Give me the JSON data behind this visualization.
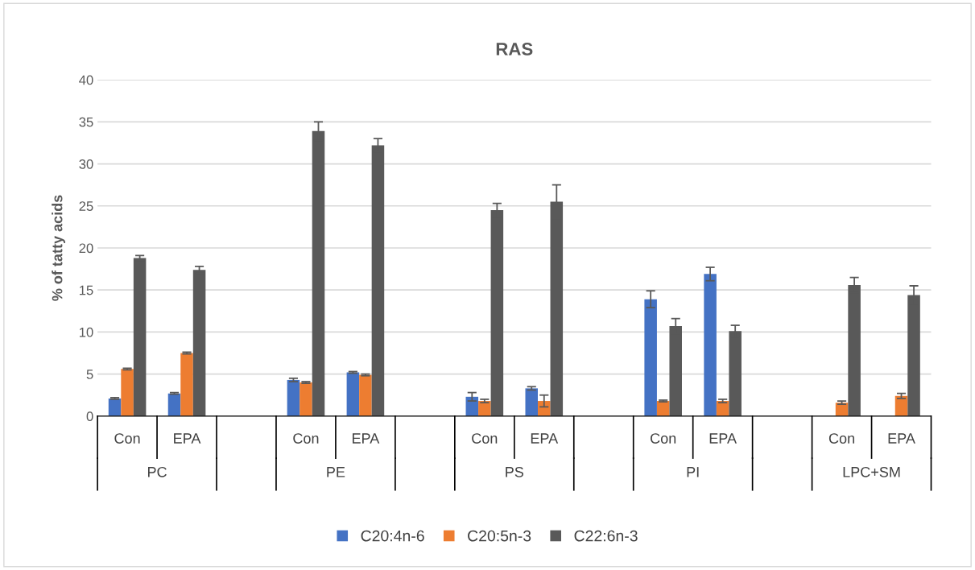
{
  "chart_data": {
    "type": "bar",
    "title": "RAS",
    "ylabel": "% of tatty acids",
    "categories": [
      "Con",
      "EPA",
      null,
      "Con",
      "EPA",
      null,
      "Con",
      "EPA",
      null,
      "Con",
      "EPA",
      null,
      "Con",
      "EPA"
    ],
    "series": [
      {
        "name": "C20:4n-6",
        "color": "#4472c4",
        "values": [
          2.1,
          2.7,
          null,
          4.3,
          5.2,
          null,
          2.3,
          3.3,
          null,
          13.9,
          16.9,
          null,
          null,
          null
        ],
        "errors": [
          0.1,
          0.1,
          null,
          0.2,
          0.1,
          null,
          0.5,
          0.2,
          null,
          1.0,
          0.8,
          null,
          null,
          null
        ]
      },
      {
        "name": "C20:5n-3",
        "color": "#ed7d31",
        "values": [
          5.6,
          7.5,
          null,
          4.0,
          4.9,
          null,
          1.8,
          1.8,
          null,
          1.8,
          1.8,
          null,
          1.6,
          2.4
        ],
        "errors": [
          0.1,
          0.1,
          null,
          0.1,
          0.1,
          null,
          0.2,
          0.7,
          null,
          0.1,
          0.2,
          null,
          0.2,
          0.3
        ]
      },
      {
        "name": "C22:6n-3",
        "color": "#595959",
        "values": [
          18.8,
          17.4,
          null,
          33.9,
          32.2,
          null,
          24.5,
          25.5,
          null,
          10.7,
          10.1,
          null,
          15.6,
          14.4
        ],
        "errors": [
          0.3,
          0.4,
          null,
          1.1,
          0.8,
          null,
          0.8,
          2.0,
          null,
          0.9,
          0.7,
          null,
          0.9,
          1.1
        ]
      }
    ],
    "annotations": [
      "PC",
      "PE",
      "PS",
      "PI",
      "LPC+SM"
    ],
    "ylim": [
      0,
      40
    ],
    "yticks": [
      0,
      5,
      10,
      15,
      20,
      25,
      30,
      35,
      40
    ],
    "grid": "y",
    "legend": "bottom"
  }
}
